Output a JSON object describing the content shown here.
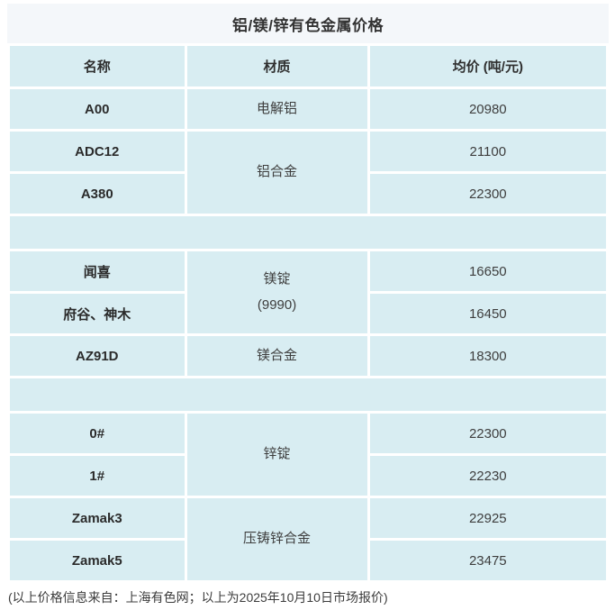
{
  "page": {
    "title": "铝/镁/锌有色金属价格",
    "footer_note": "(以上价格信息来自：上海有色网；以上为2025年10月10日市场报价)"
  },
  "colors": {
    "cell_bg": "#d8edf2",
    "title_bg": "#f4f7fa",
    "heading_text": "#2f2f2f",
    "value_text": "#3e3e3e"
  },
  "table": {
    "headers": {
      "name": "名称",
      "material": "材质",
      "price": "均价 (吨/元)"
    },
    "rows": [
      {
        "name": "A00",
        "material": "电解铝",
        "price": "20980"
      },
      {
        "name": "ADC12",
        "material": "铝合金",
        "price": "21100"
      },
      {
        "name": "A380",
        "price": "22300"
      },
      {
        "name": "闻喜",
        "material": "镁锭\n(9990)",
        "price": "16650"
      },
      {
        "name": "府谷、神木",
        "price": "16450"
      },
      {
        "name": "AZ91D",
        "material": "镁合金",
        "price": "18300"
      },
      {
        "name": "0#",
        "material": "锌锭",
        "price": "22300"
      },
      {
        "name": "1#",
        "price": "22230"
      },
      {
        "name": "Zamak3",
        "material": "压铸锌合金",
        "price": "22925"
      },
      {
        "name": "Zamak5",
        "price": "23475"
      }
    ]
  }
}
